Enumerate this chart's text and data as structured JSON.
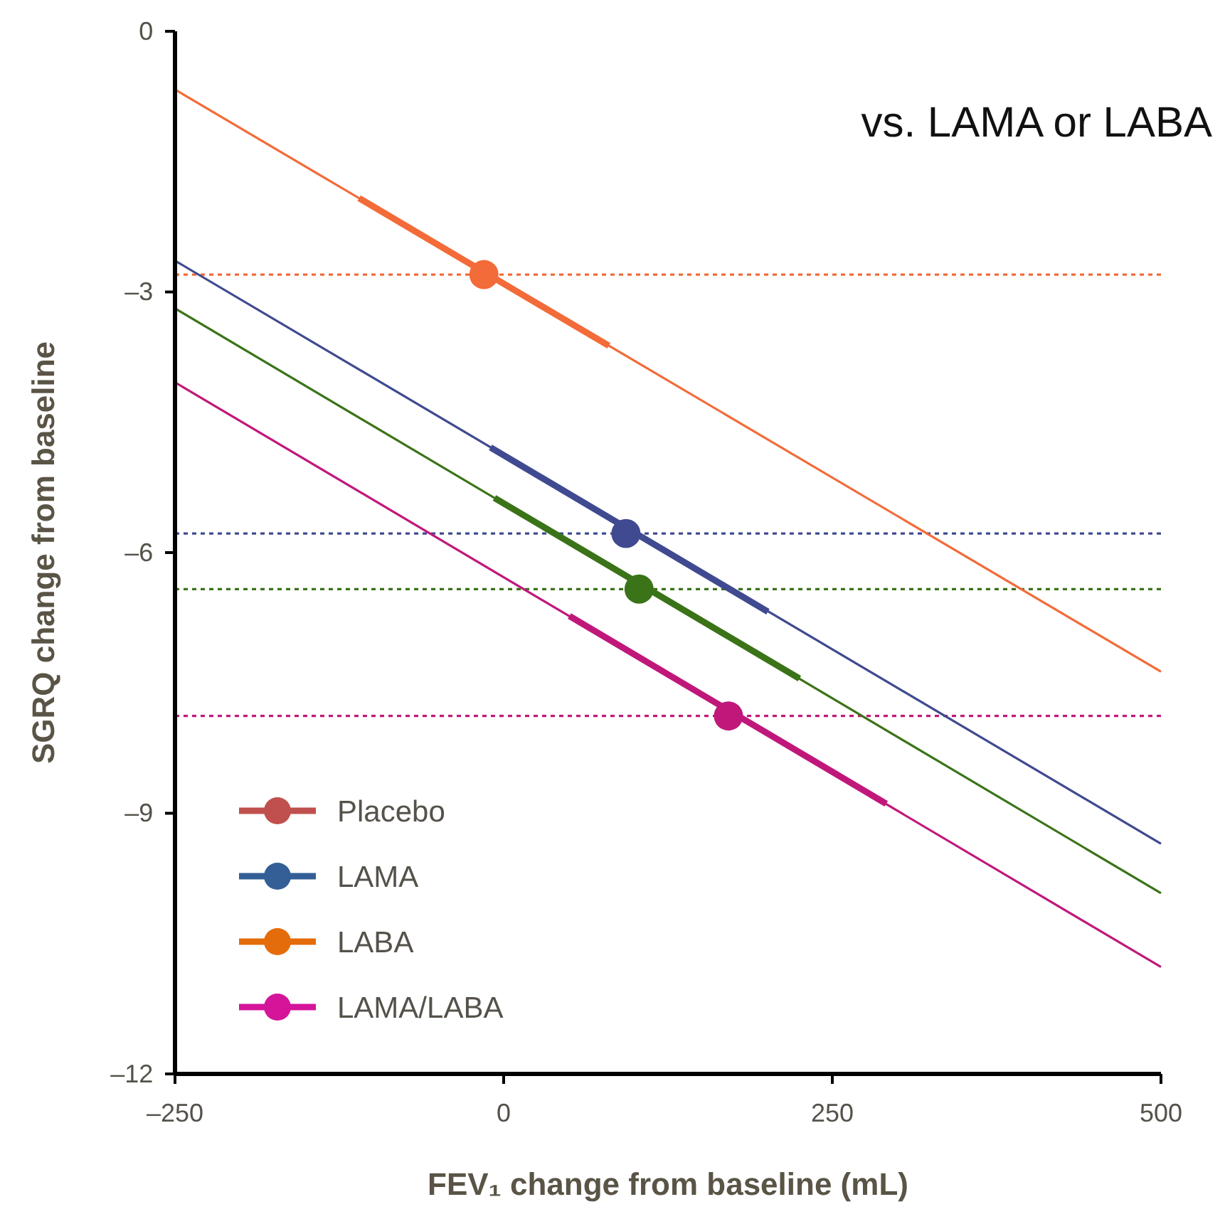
{
  "chart_data": {
    "type": "line",
    "title": "vs. LAMA or LABA",
    "xlabel": "FEV₁ change from baseline (mL)",
    "ylabel": "SGRQ change from baseline",
    "xlim": [
      -250,
      500
    ],
    "ylim": [
      -12,
      0
    ],
    "xticks": [
      {
        "value": -250,
        "label": "–250"
      },
      0,
      250,
      500
    ],
    "yticks": [
      {
        "value": -12,
        "label": "–12"
      },
      {
        "value": -9,
        "label": "–9"
      },
      {
        "value": -6,
        "label": "–6"
      },
      {
        "value": -3,
        "label": "–3"
      },
      0
    ],
    "grid": false,
    "legend": "bottom left",
    "series": [
      {
        "color": "#f26b38",
        "x": [
          -250,
          500
        ],
        "values": [
          -0.67,
          -7.37
        ]
      },
      {
        "color": "#3f4a90",
        "x": [
          -250,
          500
        ],
        "values": [
          -2.64,
          -9.35
        ]
      },
      {
        "color": "#3a7318",
        "x": [
          -250,
          500
        ],
        "values": [
          -3.19,
          -9.92
        ]
      },
      {
        "color": "#c0187a",
        "x": [
          -250,
          500
        ],
        "values": [
          -4.04,
          -10.77
        ]
      },
      {
        "color": "#f26b38",
        "x": [
          -110,
          80
        ],
        "values": [
          -1.92,
          -3.62
        ]
      },
      {
        "color": "#3f4a90",
        "x": [
          -10,
          201
        ],
        "values": [
          -4.79,
          -6.68
        ]
      },
      {
        "color": "#3a7318",
        "x": [
          -7,
          225
        ],
        "values": [
          -5.37,
          -7.45
        ]
      },
      {
        "color": "#c0187a",
        "x": [
          50,
          291
        ],
        "values": [
          -6.73,
          -8.89
        ]
      },
      {
        "type": "scatter",
        "marker": "circle",
        "color": "#f26b38",
        "x": [
          -15
        ],
        "values": [
          -2.8
        ]
      },
      {
        "type": "scatter",
        "marker": "circle",
        "color": "#3f4a90",
        "x": [
          93
        ],
        "values": [
          -5.78
        ]
      },
      {
        "type": "scatter",
        "marker": "circle",
        "color": "#3a7318",
        "x": [
          103
        ],
        "values": [
          -6.42
        ]
      },
      {
        "type": "scatter",
        "marker": "circle",
        "color": "#c0187a",
        "x": [
          171
        ],
        "values": [
          -7.88
        ]
      },
      {
        "type": "scatter",
        "marker": "circle",
        "name": "Placebo",
        "color": "#c0504d"
      },
      {
        "type": "scatter",
        "marker": "circle",
        "name": "LAMA",
        "color": "#335f96"
      },
      {
        "type": "scatter",
        "marker": "circle",
        "name": "LABA",
        "color": "#e46c0a"
      },
      {
        "type": "scatter",
        "marker": "circle",
        "name": "LAMA/LABA",
        "color": "#d4159a"
      }
    ],
    "ref_lines": [
      {
        "axis": "y",
        "value": -2.8,
        "color": "#f26b38",
        "line_style": "dotted"
      },
      {
        "axis": "y",
        "value": -5.78,
        "color": "#3f4a90",
        "line_style": "dotted"
      },
      {
        "axis": "y",
        "value": -6.42,
        "color": "#3a7318",
        "line_style": "dotted"
      },
      {
        "axis": "y",
        "value": -7.88,
        "color": "#c0187a",
        "line_style": "dotted"
      }
    ]
  }
}
